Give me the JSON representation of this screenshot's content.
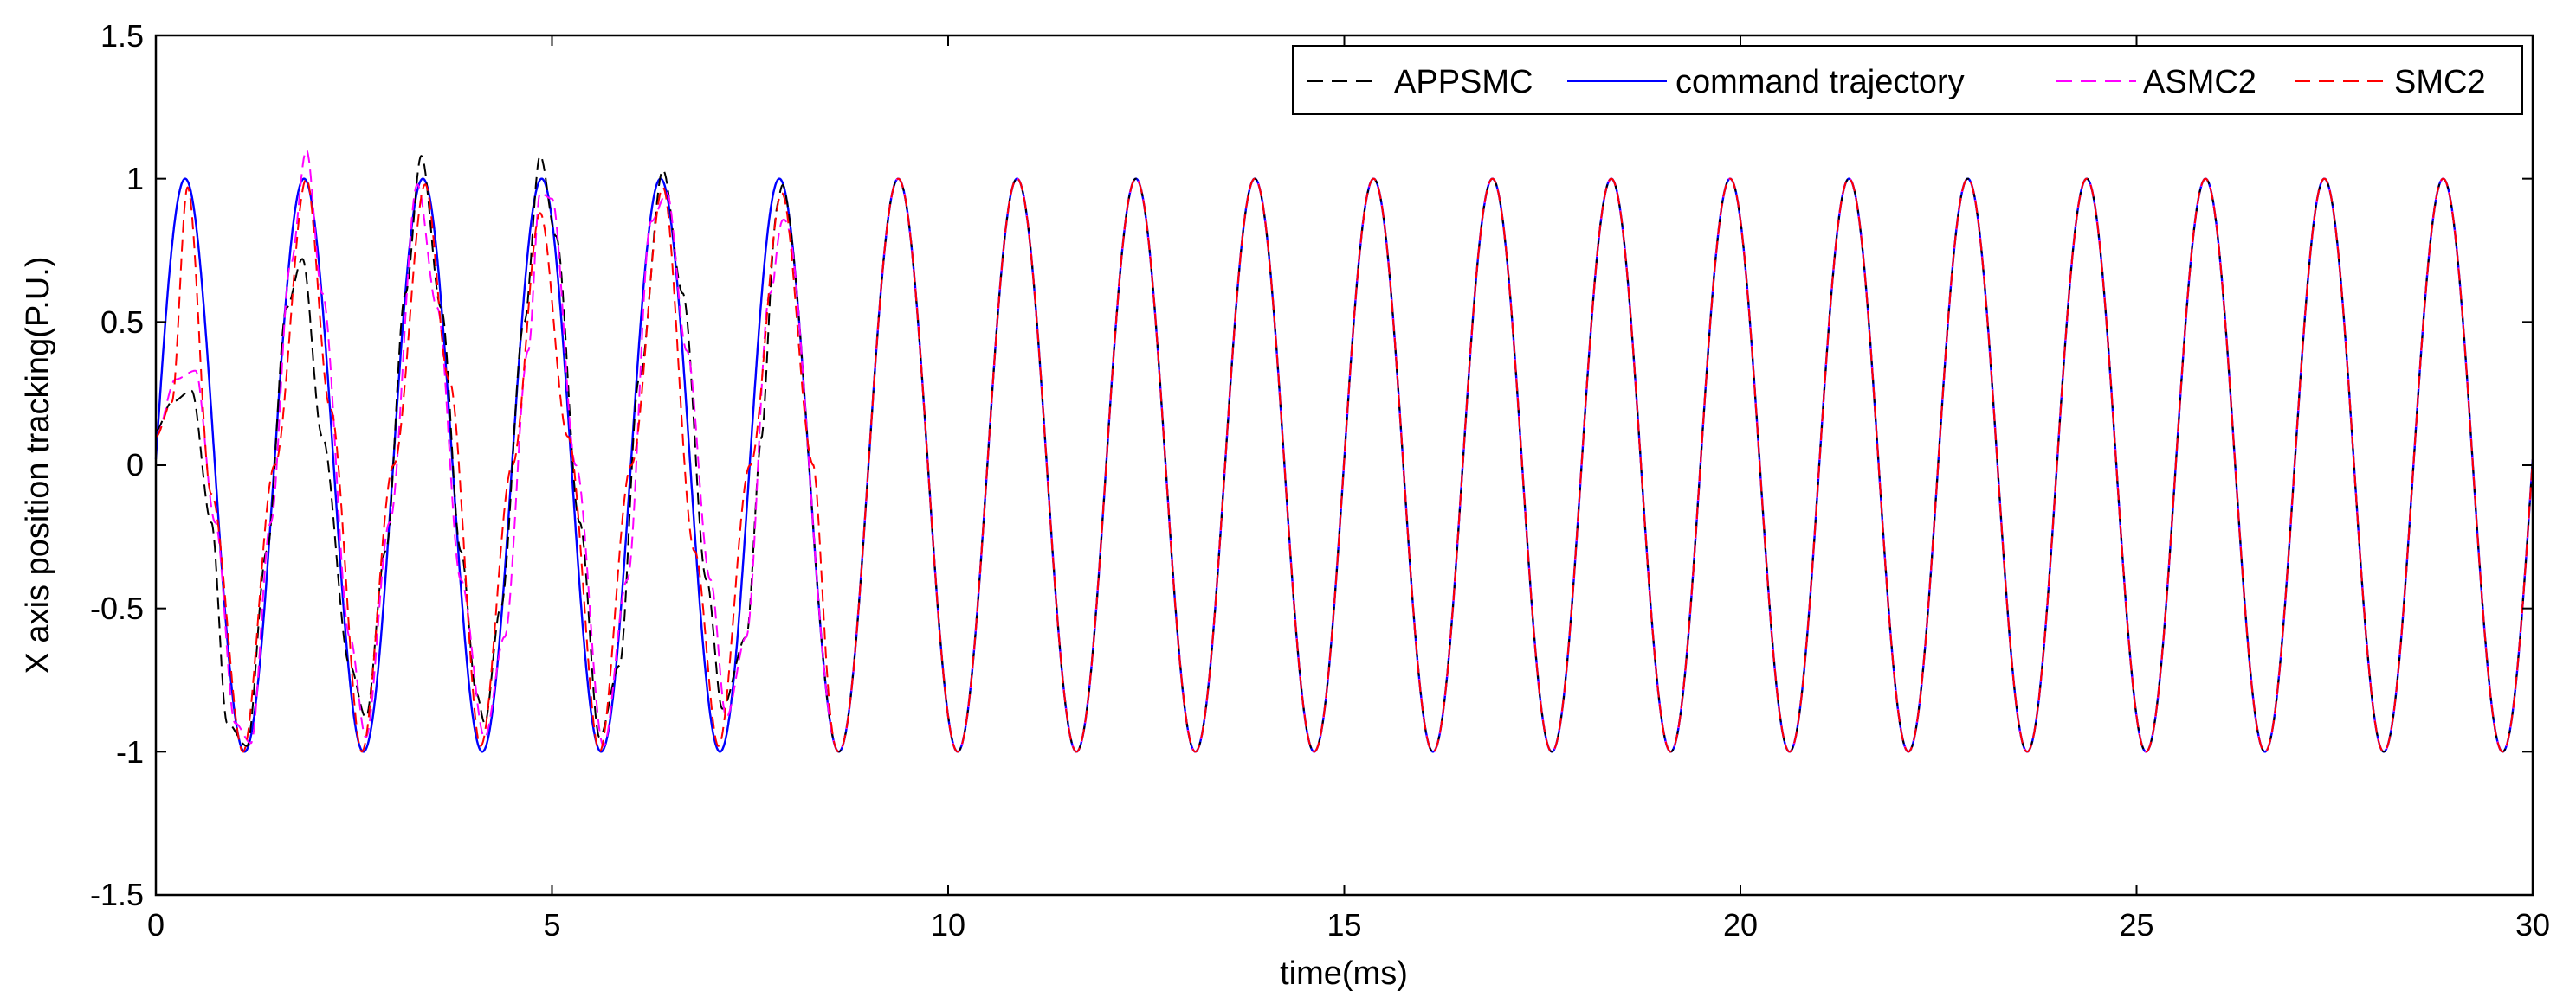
{
  "chart_data": {
    "type": "line",
    "title": "",
    "xlabel": "time(ms)",
    "ylabel": "X axis position tracking(P.U.)",
    "xlim": [
      0,
      30
    ],
    "ylim": [
      -1.5,
      1.5
    ],
    "xticks": [
      0,
      5,
      10,
      15,
      20,
      25,
      30
    ],
    "yticks": [
      -1.5,
      -1,
      -0.5,
      0,
      0.5,
      1,
      1.5
    ],
    "xtick_labels": [
      "0",
      "5",
      "10",
      "15",
      "20",
      "25",
      "30"
    ],
    "ytick_labels": [
      "-1.5",
      "-1",
      "-0.5",
      "0",
      "0.5",
      "1",
      "1.5"
    ],
    "grid": false,
    "legend_position": "top-right",
    "signal": {
      "period_ms": 1.5,
      "amplitude": 1.0,
      "first_peak_ms": 0.37
    },
    "series": [
      {
        "name": "APPSMC",
        "color": "#000000",
        "style": "dashed",
        "transient_points": [
          [
            0,
            0.12
          ],
          [
            0.2,
            0.22
          ],
          [
            0.45,
            0.26
          ],
          [
            0.7,
            -0.2
          ],
          [
            0.9,
            -0.9
          ],
          [
            1.15,
            -0.98
          ],
          [
            1.4,
            -0.3
          ],
          [
            1.65,
            0.55
          ],
          [
            1.85,
            0.72
          ],
          [
            2.1,
            0.1
          ],
          [
            2.45,
            -0.7
          ],
          [
            2.65,
            -0.88
          ],
          [
            2.9,
            -0.3
          ],
          [
            3.15,
            0.6
          ],
          [
            3.35,
            1.08
          ],
          [
            3.6,
            0.55
          ],
          [
            3.85,
            -0.3
          ],
          [
            4.05,
            -0.8
          ],
          [
            4.15,
            -0.9
          ],
          [
            4.35,
            -0.5
          ],
          [
            4.65,
            0.5
          ],
          [
            4.85,
            1.08
          ],
          [
            5.05,
            0.8
          ],
          [
            5.35,
            -0.2
          ],
          [
            5.6,
            -0.95
          ],
          [
            5.85,
            -0.7
          ],
          [
            6.1,
            0.3
          ],
          [
            6.4,
            1.03
          ],
          [
            6.65,
            0.6
          ],
          [
            6.95,
            -0.4
          ],
          [
            7.15,
            -0.85
          ],
          [
            7.45,
            -0.6
          ],
          [
            7.65,
            0.1
          ],
          [
            7.85,
            0.75
          ],
          [
            7.95,
            1.02
          ]
        ]
      },
      {
        "name": "command trajectory",
        "color": "#0000ff",
        "style": "solid",
        "transient_points": []
      },
      {
        "name": "ASMC2",
        "color": "#ff00ff",
        "style": "dashed",
        "transient_points": [
          [
            0,
            0.1
          ],
          [
            0.25,
            0.3
          ],
          [
            0.5,
            0.33
          ],
          [
            0.75,
            -0.2
          ],
          [
            1.0,
            -0.9
          ],
          [
            1.2,
            -0.97
          ],
          [
            1.45,
            -0.2
          ],
          [
            1.7,
            0.7
          ],
          [
            1.9,
            1.1
          ],
          [
            2.1,
            0.6
          ],
          [
            2.45,
            -0.6
          ],
          [
            2.65,
            -0.95
          ],
          [
            2.95,
            -0.2
          ],
          [
            3.3,
            0.98
          ],
          [
            3.55,
            0.55
          ],
          [
            3.85,
            -0.4
          ],
          [
            4.15,
            -0.95
          ],
          [
            4.4,
            -0.6
          ],
          [
            4.7,
            0.4
          ],
          [
            4.85,
            0.95
          ],
          [
            5.0,
            0.93
          ],
          [
            5.3,
            0.0
          ],
          [
            5.65,
            -0.98
          ],
          [
            5.95,
            -0.4
          ],
          [
            6.25,
            0.85
          ],
          [
            6.45,
            0.95
          ],
          [
            6.7,
            0.4
          ],
          [
            7.0,
            -0.4
          ],
          [
            7.2,
            -0.88
          ],
          [
            7.45,
            -0.6
          ],
          [
            7.75,
            0.6
          ],
          [
            7.9,
            0.78
          ],
          [
            8.1,
            0.65
          ]
        ]
      },
      {
        "name": "SMC2",
        "color": "#ff0000",
        "style": "dashed",
        "transient_points": [
          [
            0,
            0.1
          ],
          [
            0.2,
            0.22
          ],
          [
            0.4,
            0.97
          ],
          [
            0.7,
            -0.1
          ],
          [
            1.1,
            -1.0
          ],
          [
            1.5,
            0.0
          ],
          [
            1.9,
            1.0
          ],
          [
            2.2,
            0.2
          ],
          [
            2.6,
            -1.0
          ],
          [
            3.0,
            0.0
          ],
          [
            3.4,
            0.98
          ],
          [
            3.7,
            0.3
          ],
          [
            4.1,
            -0.98
          ],
          [
            4.5,
            0.0
          ],
          [
            4.85,
            0.88
          ],
          [
            5.2,
            0.1
          ],
          [
            5.6,
            -1.0
          ],
          [
            6.0,
            0.0
          ],
          [
            6.4,
            0.97
          ],
          [
            6.8,
            -0.3
          ],
          [
            7.1,
            -0.98
          ],
          [
            7.5,
            0.0
          ],
          [
            7.9,
            0.95
          ],
          [
            8.3,
            0.0
          ],
          [
            8.6,
            -1.0
          ]
        ]
      }
    ],
    "text": {
      "xtick_labels": [
        "0",
        "5",
        "10",
        "15",
        "20",
        "25",
        "30"
      ],
      "ytick_labels": [
        "-1.5",
        "-1",
        "-0.5",
        "0",
        "0.5",
        "1",
        "1.5"
      ]
    }
  }
}
